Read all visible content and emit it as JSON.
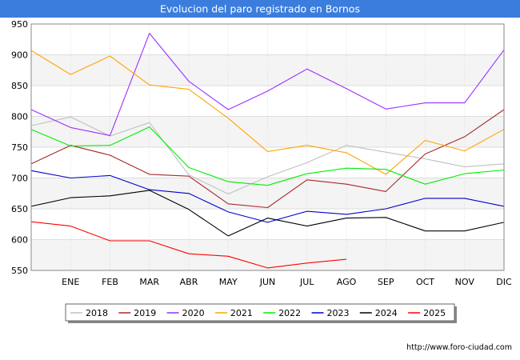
{
  "chart_data": {
    "type": "line",
    "title": "Evolucion del paro registrado en Bornos",
    "xlabel": "",
    "ylabel": "",
    "categories": [
      "ENE",
      "FEB",
      "MAR",
      "ABR",
      "MAY",
      "JUN",
      "JUL",
      "AGO",
      "SEP",
      "OCT",
      "NOV",
      "DIC"
    ],
    "x_range": [
      0,
      12
    ],
    "ylim": [
      550,
      950
    ],
    "yticks": [
      550,
      600,
      650,
      700,
      750,
      800,
      850,
      900,
      950
    ],
    "grid": true,
    "legend_position": "bottom",
    "series": [
      {
        "name": "2018",
        "color": "#c0c0c0",
        "x": [
          0,
          1,
          2,
          3,
          4,
          5,
          6,
          7,
          8,
          9,
          10,
          11,
          12
        ],
        "values": [
          785,
          799,
          768,
          790,
          705,
          674,
          702,
          725,
          753,
          742,
          731,
          718,
          723
        ]
      },
      {
        "name": "2019",
        "color": "#a52a2a",
        "x": [
          0,
          1,
          2,
          3,
          4,
          5,
          6,
          7,
          8,
          9,
          10,
          11,
          12
        ],
        "values": [
          723,
          753,
          737,
          706,
          703,
          658,
          652,
          697,
          690,
          678,
          739,
          767,
          811
        ]
      },
      {
        "name": "2020",
        "color": "#9b30ff",
        "x": [
          0,
          1,
          2,
          3,
          4,
          5,
          6,
          7,
          8,
          9,
          10,
          11,
          12
        ],
        "values": [
          811,
          782,
          769,
          935,
          857,
          811,
          841,
          877,
          845,
          812,
          822,
          822,
          908
        ]
      },
      {
        "name": "2021",
        "color": "#ffa500",
        "x": [
          0,
          1,
          2,
          3,
          4,
          5,
          6,
          7,
          8,
          9,
          10,
          11,
          12
        ],
        "values": [
          907,
          868,
          898,
          851,
          844,
          797,
          743,
          753,
          741,
          706,
          761,
          744,
          779
        ]
      },
      {
        "name": "2022",
        "color": "#00ee00",
        "x": [
          0,
          1,
          2,
          3,
          4,
          5,
          6,
          7,
          8,
          9,
          10,
          11,
          12
        ],
        "values": [
          779,
          752,
          753,
          783,
          717,
          694,
          688,
          707,
          716,
          714,
          690,
          707,
          713
        ]
      },
      {
        "name": "2023",
        "color": "#0000cd",
        "x": [
          0,
          1,
          2,
          3,
          4,
          5,
          6,
          7,
          8,
          9,
          10,
          11,
          12
        ],
        "values": [
          712,
          700,
          704,
          681,
          675,
          645,
          628,
          646,
          641,
          650,
          667,
          667,
          654
        ]
      },
      {
        "name": "2024",
        "color": "#000000",
        "x": [
          0,
          1,
          2,
          3,
          4,
          5,
          6,
          7,
          8,
          9,
          10,
          11,
          12
        ],
        "values": [
          654,
          668,
          671,
          680,
          649,
          606,
          635,
          622,
          635,
          636,
          614,
          614,
          628
        ]
      },
      {
        "name": "2025",
        "color": "#ff0000",
        "x": [
          0,
          1,
          2,
          3,
          4,
          5,
          6,
          7,
          8
        ],
        "values": [
          629,
          622,
          598,
          598,
          577,
          573,
          554,
          562,
          568
        ]
      }
    ],
    "source": "http://www.foro-ciudad.com"
  }
}
